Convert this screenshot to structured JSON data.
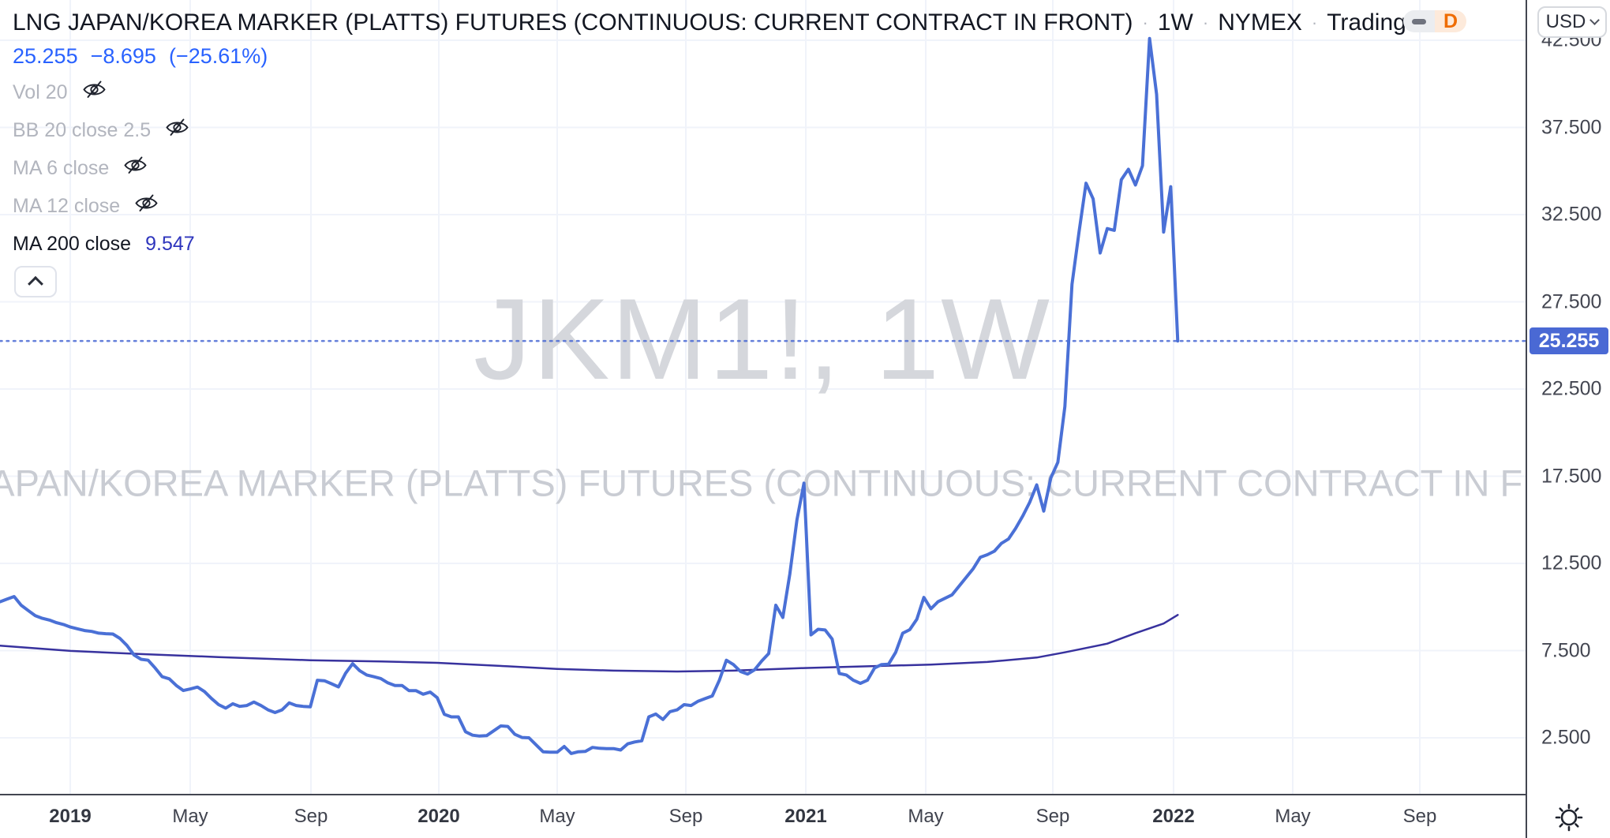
{
  "header": {
    "symbol_title": "LNG JAPAN/KOREA MARKER (PLATTS) FUTURES (CONTINUOUS: CURRENT CONTRACT IN FRONT)",
    "separator": "·",
    "interval": "1W",
    "exchange": "NYMEX",
    "brand": "TradingView",
    "price": {
      "last": "25.255",
      "change": "−8.695",
      "change_pct": "(−25.61%)"
    },
    "toggle": {
      "d_label": "D"
    },
    "currency_button": {
      "label": "USD"
    }
  },
  "legend": {
    "rows": [
      {
        "label": "Vol 20",
        "muted": true,
        "eye_off": true
      },
      {
        "label": "BB 20 close 2.5",
        "muted": true,
        "eye_off": true
      },
      {
        "label": "MA 6 close",
        "muted": true,
        "eye_off": true
      },
      {
        "label": "MA 12 close",
        "muted": true,
        "eye_off": true
      },
      {
        "label": "MA 200 close",
        "muted": false,
        "eye_off": false,
        "value": "9.547"
      }
    ]
  },
  "watermark": {
    "big": "JKM1!, 1W",
    "small": "LNG JAPAN/KOREA MARKER (PLATTS) FUTURES (CONTINUOUS: CURRENT CONTRACT IN FRONT)"
  },
  "price_axis": {
    "labels": [
      [
        "42.500",
        42.5
      ],
      [
        "37.500",
        37.5
      ],
      [
        "32.500",
        32.5
      ],
      [
        "27.500",
        27.5
      ],
      [
        "22.500",
        22.5
      ],
      [
        "17.500",
        17.5
      ],
      [
        "12.500",
        12.5
      ],
      [
        "7.500",
        7.5
      ],
      [
        "2.500",
        2.5
      ]
    ],
    "last_badge": {
      "text": "25.255",
      "price": 25.255
    }
  },
  "time_axis": {
    "ticks": [
      [
        "2019",
        89,
        true
      ],
      [
        "May",
        241,
        false
      ],
      [
        "Sep",
        394,
        false
      ],
      [
        "2020",
        556,
        true
      ],
      [
        "May",
        706,
        false
      ],
      [
        "Sep",
        869,
        false
      ],
      [
        "2021",
        1021,
        true
      ],
      [
        "May",
        1173,
        false
      ],
      [
        "Sep",
        1334,
        false
      ],
      [
        "2022",
        1487,
        true
      ],
      [
        "May",
        1638,
        false
      ],
      [
        "Sep",
        1799,
        false
      ]
    ]
  },
  "colors": {
    "price_line": "#4a70d6",
    "ma_line": "#38329e",
    "ma_value_text": "#2e35bd",
    "quote_text": "#2962ff",
    "badge": "#4a69d4",
    "grid": "#f0f3fa",
    "axis_border": "#434651",
    "axis_text": "#434651",
    "muted_text": "#b2b5be",
    "dark_text": "#131722",
    "toggle_orange": "#ef6c00",
    "toggle_orange_bg": "#fdeadb"
  },
  "chart_data": {
    "type": "line",
    "title": "LNG JAPAN/KOREA MARKER (PLATTS) FUTURES (CONTINUOUS: CURRENT CONTRACT IN FRONT)",
    "symbol": "JKM1!",
    "interval": "1W",
    "exchange": "NYMEX",
    "currency": "USD",
    "last_close": 25.255,
    "change": -8.695,
    "change_pct": -25.61,
    "ylim": [
      0,
      45
    ],
    "y_ticks": [
      2.5,
      7.5,
      12.5,
      17.5,
      22.5,
      27.5,
      32.5,
      37.5,
      42.5
    ],
    "grid": true,
    "legend_position": "top-left",
    "series": [
      {
        "name": "JKM1! weekly close",
        "start_date": "2018-10-22",
        "step_days": 7,
        "values": [
          10.3,
          10.45,
          10.6,
          10.1,
          9.8,
          9.5,
          9.35,
          9.25,
          9.1,
          9.0,
          8.85,
          8.75,
          8.65,
          8.6,
          8.5,
          8.47,
          8.45,
          8.2,
          7.8,
          7.25,
          7.0,
          6.95,
          6.5,
          6.0,
          5.88,
          5.5,
          5.21,
          5.3,
          5.41,
          5.15,
          4.75,
          4.4,
          4.2,
          4.45,
          4.3,
          4.35,
          4.55,
          4.35,
          4.1,
          3.95,
          4.1,
          4.5,
          4.35,
          4.3,
          4.28,
          5.8,
          5.77,
          5.6,
          5.42,
          6.2,
          6.75,
          6.35,
          6.1,
          6.0,
          5.9,
          5.65,
          5.5,
          5.5,
          5.2,
          5.2,
          5.0,
          5.12,
          4.8,
          3.85,
          3.7,
          3.7,
          2.85,
          2.65,
          2.6,
          2.62,
          2.9,
          3.18,
          3.15,
          2.7,
          2.52,
          2.5,
          2.1,
          1.7,
          1.67,
          1.67,
          2.0,
          1.6,
          1.7,
          1.72,
          1.95,
          1.9,
          1.88,
          1.88,
          1.8,
          2.15,
          2.26,
          2.33,
          3.7,
          3.86,
          3.55,
          4.0,
          4.1,
          4.4,
          4.35,
          4.6,
          4.75,
          4.9,
          5.8,
          6.95,
          6.7,
          6.3,
          6.15,
          6.4,
          6.9,
          7.33,
          10.1,
          9.4,
          11.9,
          15.0,
          17.1,
          8.4,
          8.72,
          8.68,
          8.16,
          6.19,
          6.1,
          5.8,
          5.62,
          5.8,
          6.5,
          6.7,
          6.72,
          7.4,
          8.5,
          8.7,
          9.3,
          10.55,
          9.9,
          10.3,
          10.5,
          10.7,
          11.2,
          11.7,
          12.2,
          12.85,
          13.0,
          13.2,
          13.65,
          13.9,
          14.5,
          15.2,
          16.0,
          17.0,
          15.5,
          17.4,
          18.3,
          21.5,
          28.5,
          31.5,
          34.3,
          33.4,
          30.3,
          31.7,
          31.6,
          34.5,
          35.1,
          34.2,
          35.3,
          42.6,
          39.4,
          31.5,
          34.1,
          25.255
        ]
      },
      {
        "name": "MA 200 close",
        "current_value": 9.547,
        "points_week_value": [
          [
            0,
            7.78
          ],
          [
            10,
            7.48
          ],
          [
            20,
            7.3
          ],
          [
            31,
            7.13
          ],
          [
            44,
            6.95
          ],
          [
            54,
            6.88
          ],
          [
            62,
            6.8
          ],
          [
            72,
            6.6
          ],
          [
            79,
            6.45
          ],
          [
            87,
            6.35
          ],
          [
            96,
            6.3
          ],
          [
            104,
            6.35
          ],
          [
            114,
            6.5
          ],
          [
            123,
            6.6
          ],
          [
            132,
            6.7
          ],
          [
            140,
            6.85
          ],
          [
            147,
            7.1
          ],
          [
            151,
            7.4
          ],
          [
            157,
            7.9
          ],
          [
            161,
            8.5
          ],
          [
            165,
            9.05
          ],
          [
            167,
            9.547
          ]
        ]
      }
    ]
  }
}
